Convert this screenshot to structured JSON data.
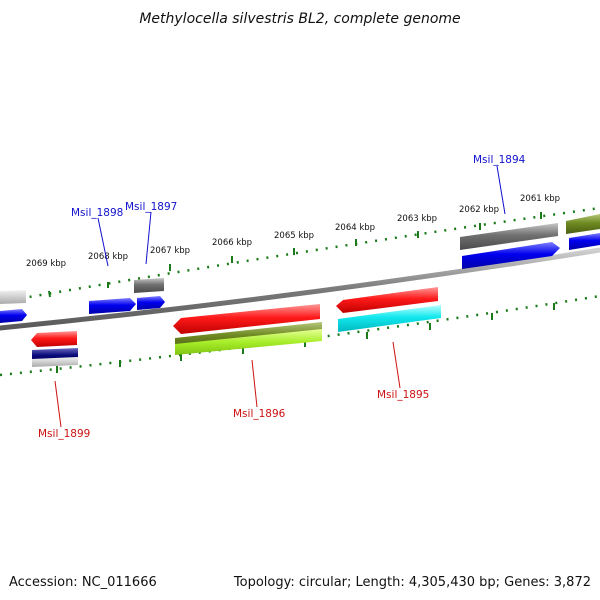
{
  "title": "Methylocella silvestris BL2, complete genome",
  "footer": {
    "accession": "Accession: NC_011666",
    "summary": "Topology: circular; Length: 4,305,430 bp; Genes: 3,872"
  },
  "ruler_labels": [
    "2069 kbp",
    "2068 kbp",
    "2067 kbp",
    "2066 kbp",
    "2065 kbp",
    "2064 kbp",
    "2063 kbp",
    "2062 kbp",
    "2061 kbp"
  ],
  "gene_labels": [
    "Msil_1898",
    "Msil_1897",
    "Msil_1894",
    "Msil_1899",
    "Msil_1896",
    "Msil_1895"
  ],
  "colors": {
    "forward_label": "#1010cc",
    "reverse_label": "#cc1111",
    "tick": "#1a7a1a",
    "backbone": "#808080"
  }
}
